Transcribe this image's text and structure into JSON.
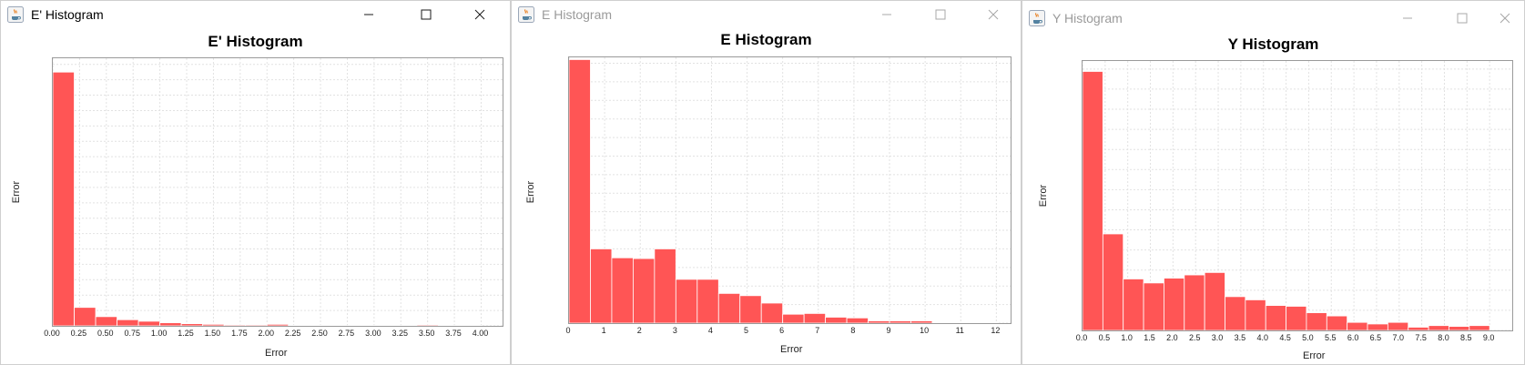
{
  "windows": [
    {
      "id": "eprime",
      "title": "E' Histogram",
      "active": true,
      "chart_title": "E' Histogram",
      "chart_data": {
        "type": "bar",
        "title": "E' Histogram",
        "xlabel": "Error",
        "ylabel": "Error",
        "xlim": [
          0,
          4.2
        ],
        "ylim": [
          0,
          0.87
        ],
        "bin_width": 0.2,
        "bin_starts": [
          0.0,
          0.2,
          0.4,
          0.6,
          0.8,
          1.0,
          1.2,
          1.4,
          1.6,
          1.8,
          2.0,
          2.2,
          2.4,
          2.6,
          2.8,
          3.0,
          3.2,
          3.4,
          3.6,
          3.8
        ],
        "values": [
          0.825,
          0.06,
          0.03,
          0.02,
          0.015,
          0.01,
          0.007,
          0.005,
          0.003,
          0.003,
          0.005,
          0.002,
          0.002,
          0.001,
          0.001,
          0.001,
          0.001,
          0.003,
          0.001,
          0.002
        ],
        "x_ticks": [
          "0.00",
          "0.25",
          "0.50",
          "0.75",
          "1.00",
          "1.25",
          "1.50",
          "1.75",
          "2.00",
          "2.25",
          "2.50",
          "2.75",
          "3.00",
          "3.25",
          "3.50",
          "3.75",
          "4.00"
        ],
        "y_ticks": [
          "0.00",
          "0.05",
          "0.10",
          "0.15",
          "0.20",
          "0.25",
          "0.30",
          "0.35",
          "0.40",
          "0.45",
          "0.50",
          "0.55",
          "0.60",
          "0.65",
          "0.70",
          "0.75",
          "0.80",
          "0.85"
        ]
      }
    },
    {
      "id": "e",
      "title": "E Histogram",
      "active": false,
      "chart_title": "E Histogram",
      "chart_data": {
        "type": "bar",
        "title": "E Histogram",
        "xlabel": "Error",
        "ylabel": "Error",
        "xlim": [
          0,
          12.4
        ],
        "ylim": [
          0,
          0.358
        ],
        "bin_width": 0.6,
        "bin_starts": [
          0.0,
          0.6,
          1.2,
          1.8,
          2.4,
          3.0,
          3.6,
          4.2,
          4.8,
          5.4,
          6.0,
          6.6,
          7.2,
          7.8,
          8.4,
          9.0,
          9.6,
          10.2,
          10.8,
          11.4
        ],
        "values": [
          0.355,
          0.1,
          0.088,
          0.087,
          0.1,
          0.059,
          0.059,
          0.04,
          0.037,
          0.027,
          0.012,
          0.013,
          0.008,
          0.007,
          0.003,
          0.003,
          0.003,
          0.001,
          0.001,
          0.001
        ],
        "x_ticks": [
          "0",
          "1",
          "2",
          "3",
          "4",
          "5",
          "6",
          "7",
          "8",
          "9",
          "10",
          "11",
          "12"
        ],
        "y_ticks": [
          "0.000",
          "0.025",
          "0.050",
          "0.075",
          "0.100",
          "0.125",
          "0.150",
          "0.175",
          "0.200",
          "0.225",
          "0.250",
          "0.275",
          "0.300",
          "0.325",
          "0.350"
        ]
      }
    },
    {
      "id": "y",
      "title": "Y Histogram",
      "active": false,
      "chart_title": "Y Histogram",
      "chart_data": {
        "type": "bar",
        "title": "Y Histogram",
        "xlabel": "Error",
        "ylabel": "Error",
        "xlim": [
          0,
          9.5
        ],
        "ylim": [
          0,
          0.335
        ],
        "bin_width": 0.45,
        "bin_starts": [
          0.0,
          0.45,
          0.9,
          1.35,
          1.8,
          2.25,
          2.7,
          3.15,
          3.6,
          4.05,
          4.5,
          4.95,
          5.4,
          5.85,
          6.3,
          6.75,
          7.2,
          7.65,
          8.1,
          8.55
        ],
        "values": [
          0.322,
          0.12,
          0.064,
          0.059,
          0.065,
          0.069,
          0.072,
          0.042,
          0.038,
          0.031,
          0.03,
          0.022,
          0.018,
          0.01,
          0.008,
          0.01,
          0.004,
          0.006,
          0.005,
          0.006
        ],
        "x_ticks": [
          "0.0",
          "0.5",
          "1.0",
          "1.5",
          "2.0",
          "2.5",
          "3.0",
          "3.5",
          "4.0",
          "4.5",
          "5.0",
          "5.5",
          "6.0",
          "6.5",
          "7.0",
          "7.5",
          "8.0",
          "8.5",
          "9.0"
        ],
        "y_ticks": [
          "0.000",
          "0.025",
          "0.050",
          "0.075",
          "0.100",
          "0.125",
          "0.150",
          "0.175",
          "0.200",
          "0.225",
          "0.250",
          "0.275",
          "0.300",
          "0.325"
        ]
      }
    }
  ],
  "colors": {
    "bar": "#ff5555",
    "bar_edge": "#ffffff",
    "grid": "#e2e2e2",
    "title_active": "#000000",
    "title_inactive": "#9a9a9a",
    "ctrl_active": "#1a1a1a",
    "ctrl_inactive": "#a8a8a8"
  },
  "icons": {
    "app": "java-coffee-cup-icon",
    "minimize": "minimize-icon",
    "maximize": "maximize-icon",
    "close": "close-icon"
  }
}
